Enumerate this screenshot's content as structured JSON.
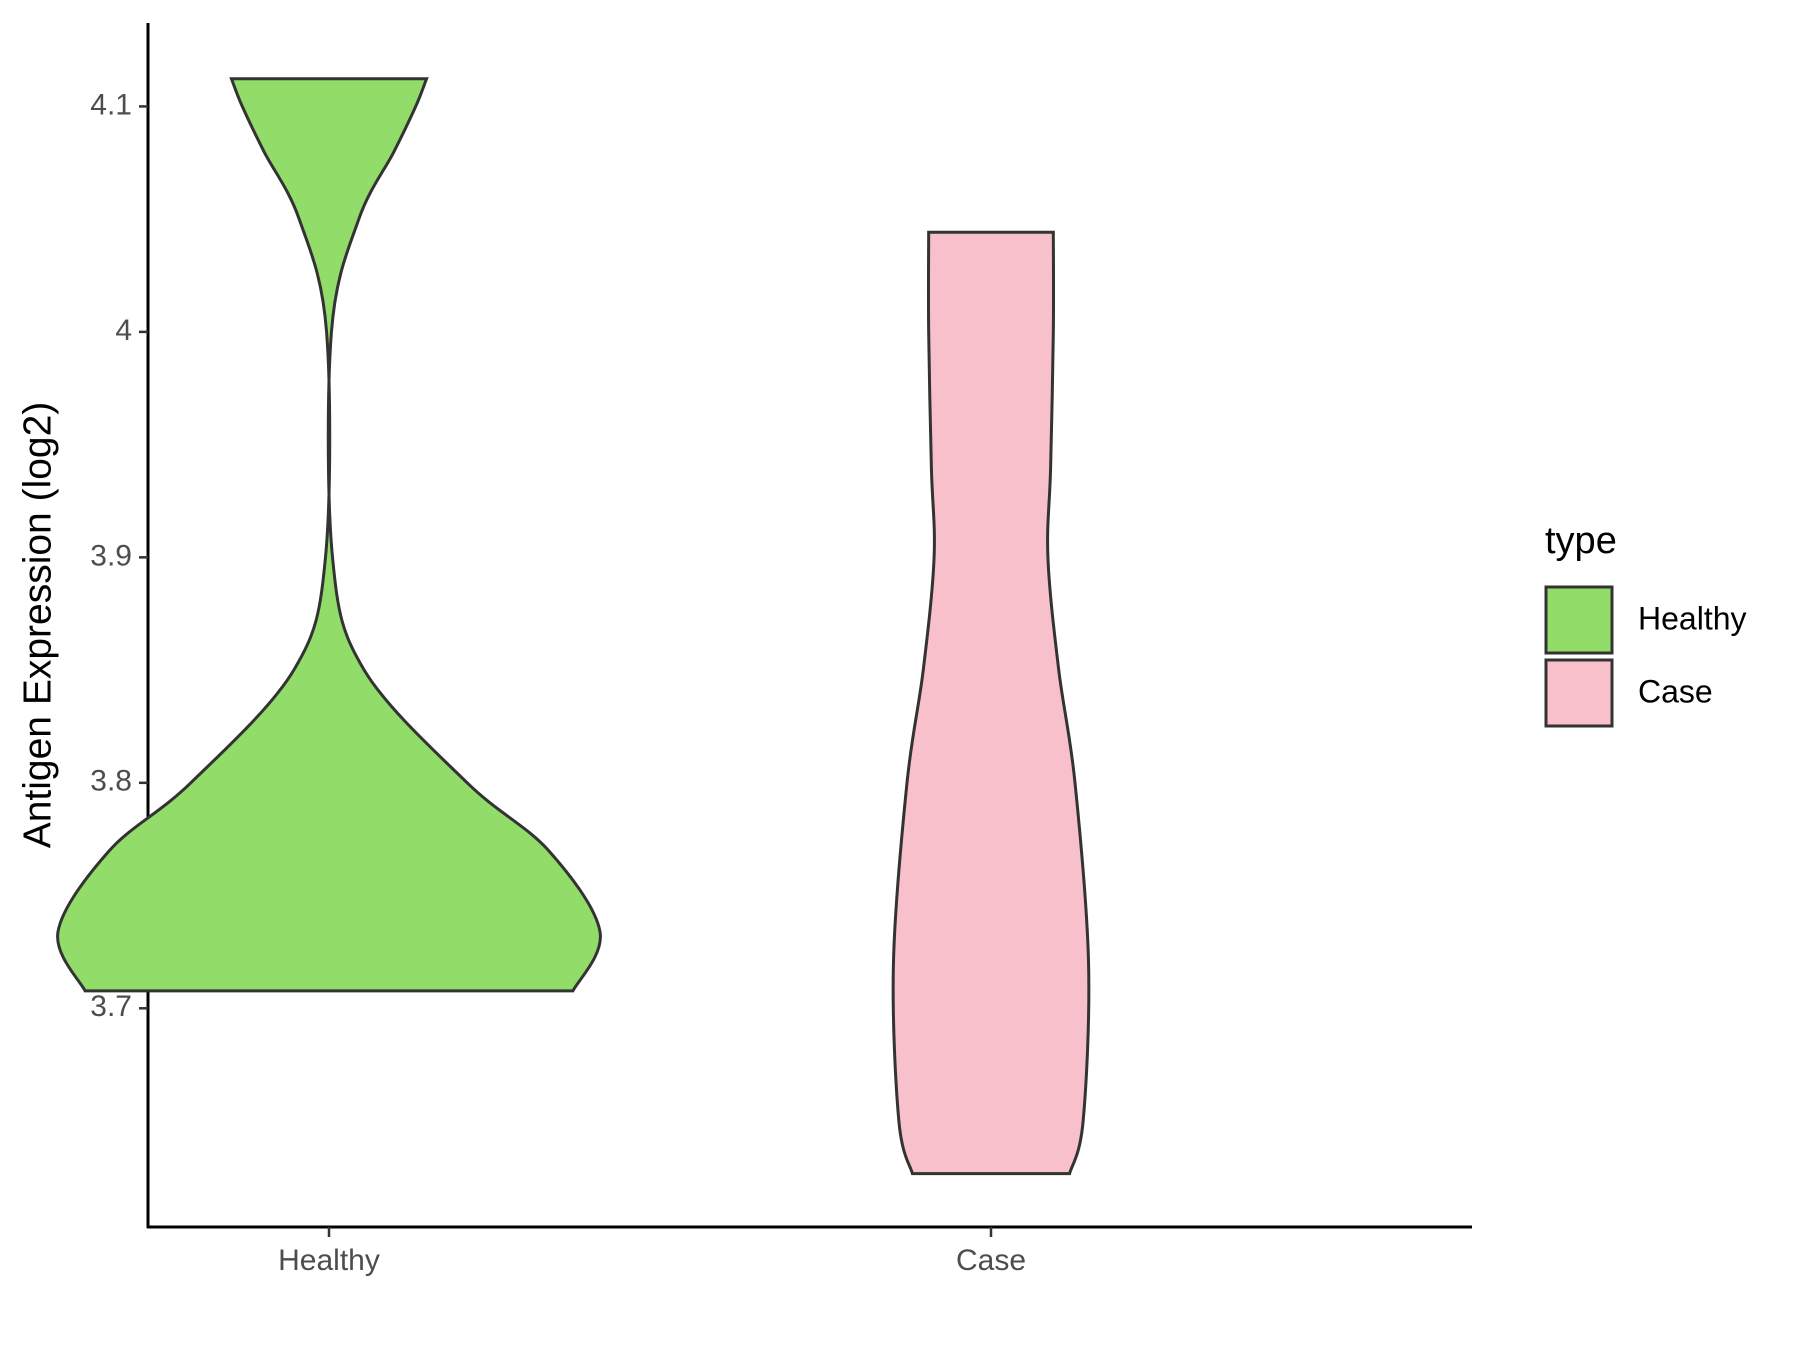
{
  "chart_data": {
    "type": "violin",
    "y_label": "Antigen Expression (log2)",
    "legend_title": "type",
    "categories": [
      "Healthy",
      "Case"
    ],
    "series": [
      {
        "name": "Healthy",
        "color": "#92dc6a",
        "y": [
          3.7077,
          3.734,
          3.77,
          3.8,
          3.85,
          3.9,
          4.0,
          4.05,
          4.08,
          4.1,
          4.1123
        ],
        "density": [
          0.9,
          1.0,
          0.81,
          0.51,
          0.13,
          0.013,
          0.009,
          0.11,
          0.24,
          0.32,
          0.36
        ]
      },
      {
        "name": "Case",
        "color": "#f7c0cb",
        "y": [
          3.6267,
          3.65,
          3.72,
          3.8,
          3.85,
          3.9,
          3.94,
          4.0,
          4.0442
        ],
        "density": [
          0.29,
          0.34,
          0.36,
          0.31,
          0.25,
          0.21,
          0.22,
          0.23,
          0.23
        ]
      }
    ],
    "ylim": [
      3.603,
      4.137
    ],
    "yticks": [
      3.7,
      3.8,
      3.9,
      4.0,
      4.1
    ],
    "legend_position": "right"
  }
}
